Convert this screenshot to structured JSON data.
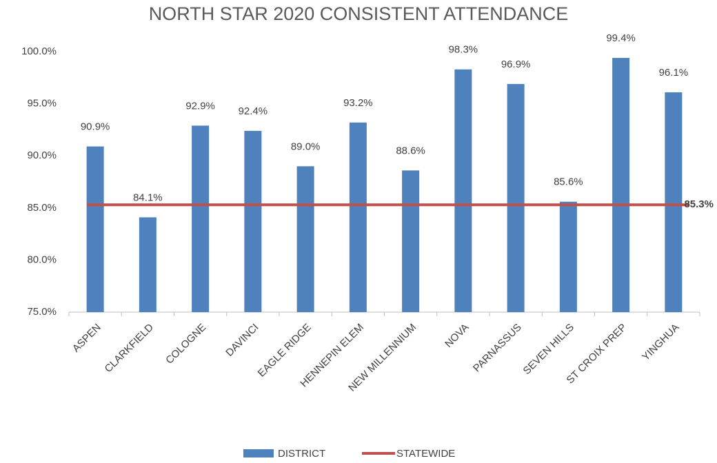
{
  "chart_data": {
    "type": "bar",
    "title": "NORTH STAR 2020 CONSISTENT ATTENDANCE",
    "categories": [
      "ASPEN",
      "CLARKFIELD",
      "COLOGNE",
      "DAVINCI",
      "EAGLE RIDGE",
      "HENNEPIN ELEM",
      "NEW MILLENNIUM",
      "NOVA",
      "PARNASSUS",
      "SEVEN HILLS",
      "ST CROIX PREP",
      "YINGHUA"
    ],
    "series": [
      {
        "name": "DISTRICT",
        "type": "bar",
        "color": "#4f81bd",
        "values": [
          90.9,
          84.1,
          92.9,
          92.4,
          89.0,
          93.2,
          88.6,
          98.3,
          96.9,
          85.6,
          99.4,
          96.1
        ],
        "value_labels": [
          "90.9%",
          "84.1%",
          "92.9%",
          "92.4%",
          "89.0%",
          "93.2%",
          "88.6%",
          "98.3%",
          "96.9%",
          "85.6%",
          "99.4%",
          "96.1%"
        ]
      },
      {
        "name": "STATEWIDE",
        "type": "line",
        "color": "#c0504d",
        "values": [
          85.3,
          85.3,
          85.3,
          85.3,
          85.3,
          85.3,
          85.3,
          85.3,
          85.3,
          85.3,
          85.3,
          85.3
        ],
        "value_labels": [
          null,
          null,
          null,
          null,
          null,
          null,
          null,
          null,
          null,
          null,
          null,
          "85.3%"
        ]
      }
    ],
    "ylim": [
      75,
      100
    ],
    "yticks": [
      {
        "value": 75,
        "label": "75.0%"
      },
      {
        "value": 80,
        "label": "80.0%"
      },
      {
        "value": 85,
        "label": "85.0%"
      },
      {
        "value": 90,
        "label": "90.0%"
      },
      {
        "value": 95,
        "label": "95.0%"
      },
      {
        "value": 100,
        "label": "100.0%"
      }
    ],
    "legend": "bottom"
  }
}
